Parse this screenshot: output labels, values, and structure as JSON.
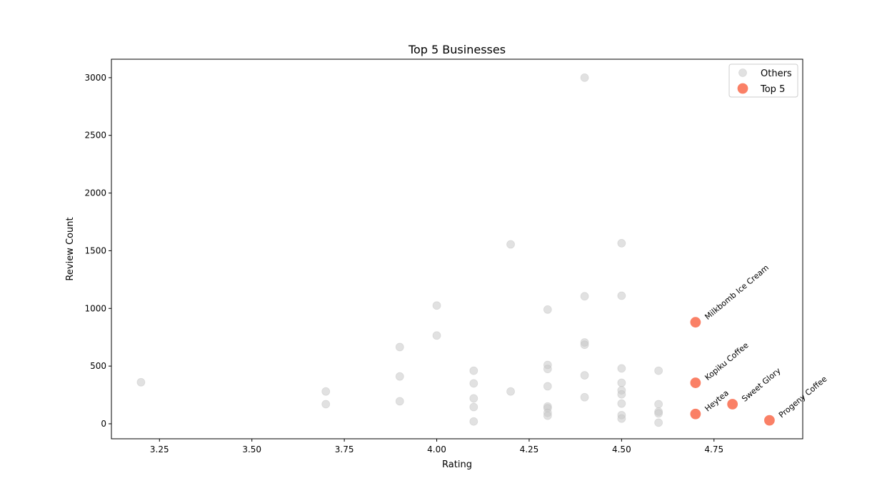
{
  "chart_data": {
    "type": "scatter",
    "title": "Top 5 Businesses",
    "xlabel": "Rating",
    "ylabel": "Review Count",
    "xlim": [
      3.12,
      4.99
    ],
    "ylim": [
      -130,
      3160
    ],
    "xticks": [
      3.25,
      3.5,
      3.75,
      4.0,
      4.25,
      4.5,
      4.75
    ],
    "xtick_labels": [
      "3.25",
      "3.50",
      "3.75",
      "4.00",
      "4.25",
      "4.50",
      "4.75"
    ],
    "yticks": [
      0,
      500,
      1000,
      1500,
      2000,
      2500,
      3000
    ],
    "ytick_labels": [
      "0",
      "500",
      "1000",
      "1500",
      "2000",
      "2500",
      "3000"
    ],
    "grid": false,
    "legend_position": "top-right",
    "series": [
      {
        "name": "Others",
        "color": "#c8c8c8",
        "points": [
          [
            3.2,
            360
          ],
          [
            3.7,
            280
          ],
          [
            3.7,
            170
          ],
          [
            3.9,
            665
          ],
          [
            3.9,
            410
          ],
          [
            3.9,
            195
          ],
          [
            4.0,
            1025
          ],
          [
            4.0,
            765
          ],
          [
            4.1,
            460
          ],
          [
            4.1,
            350
          ],
          [
            4.1,
            220
          ],
          [
            4.1,
            145
          ],
          [
            4.1,
            20
          ],
          [
            4.2,
            1555
          ],
          [
            4.2,
            280
          ],
          [
            4.3,
            990
          ],
          [
            4.3,
            510
          ],
          [
            4.3,
            475
          ],
          [
            4.3,
            325
          ],
          [
            4.3,
            150
          ],
          [
            4.3,
            135
          ],
          [
            4.3,
            95
          ],
          [
            4.3,
            70
          ],
          [
            4.4,
            3000
          ],
          [
            4.4,
            1105
          ],
          [
            4.4,
            705
          ],
          [
            4.4,
            685
          ],
          [
            4.4,
            420
          ],
          [
            4.4,
            230
          ],
          [
            4.5,
            1565
          ],
          [
            4.5,
            1110
          ],
          [
            4.5,
            480
          ],
          [
            4.5,
            355
          ],
          [
            4.5,
            290
          ],
          [
            4.5,
            255
          ],
          [
            4.5,
            175
          ],
          [
            4.5,
            75
          ],
          [
            4.5,
            45
          ],
          [
            4.6,
            460
          ],
          [
            4.6,
            170
          ],
          [
            4.6,
            105
          ],
          [
            4.6,
            90
          ],
          [
            4.6,
            10
          ]
        ]
      },
      {
        "name": "Top 5",
        "color": "#fa8066",
        "points": [
          [
            4.7,
            880
          ],
          [
            4.7,
            355
          ],
          [
            4.7,
            85
          ],
          [
            4.8,
            170
          ],
          [
            4.9,
            30
          ]
        ],
        "labels": [
          "Milkbomb Ice Cream",
          "Kopiku Coffee",
          "Heytea",
          "Sweet Glory",
          "Progeny Coffee"
        ]
      }
    ]
  }
}
